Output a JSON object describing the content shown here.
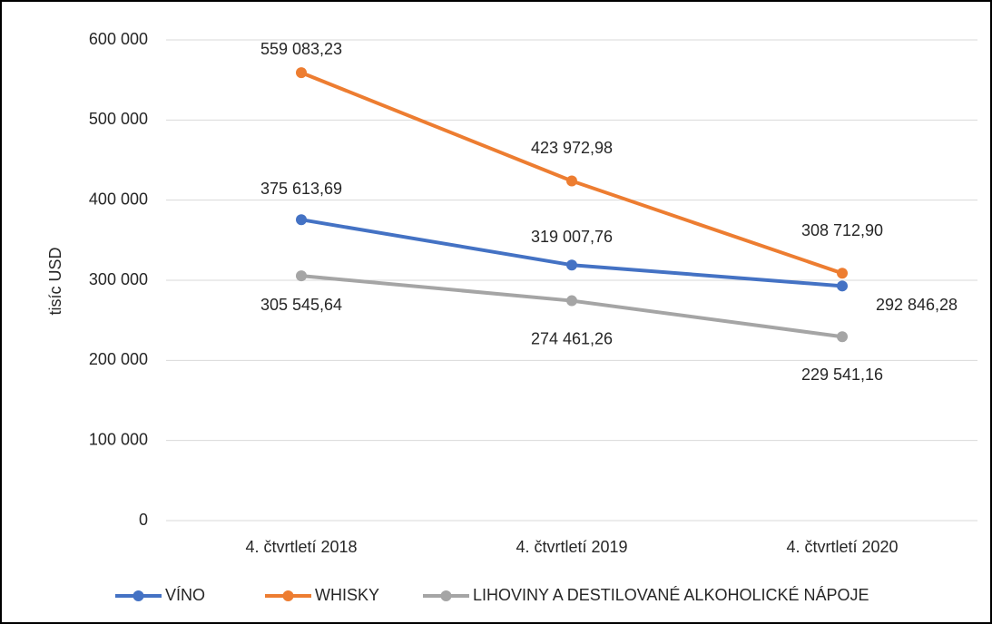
{
  "chart_data": {
    "type": "line",
    "ylabel": "tisíc USD",
    "categories": [
      "4. čtvrtletí 2018",
      "4. čtvrtletí 2019",
      "4. čtvrtletí 2020"
    ],
    "series": [
      {
        "name": "VÍNO",
        "color": "#4472c4",
        "values": [
          375613.69,
          319007.76,
          292846.28
        ],
        "value_labels": [
          "375 613,69",
          "319 007,76",
          "292 846,28"
        ]
      },
      {
        "name": "WHISKY",
        "color": "#ed7d31",
        "values": [
          559083.23,
          423972.98,
          308712.9
        ],
        "value_labels": [
          "559 083,23",
          "423 972,98",
          "308 712,90"
        ]
      },
      {
        "name": "LIHOVINY A DESTILOVANÉ ALKOHOLICKÉ NÁPOJE",
        "color": "#a5a5a5",
        "values": [
          305545.64,
          274461.26,
          229541.16
        ],
        "value_labels": [
          "305 545,64",
          "274 461,26",
          "229 541,16"
        ]
      }
    ],
    "ylim": [
      0,
      600000
    ],
    "yticks": [
      0,
      {
        "value": 100000,
        "label": "100 000"
      },
      {
        "value": 200000,
        "label": "200 000"
      },
      {
        "value": 300000,
        "label": "300 000"
      },
      {
        "value": 400000,
        "label": "400 000"
      },
      {
        "value": 500000,
        "label": "500 000"
      },
      {
        "value": 600000,
        "label": "600 000"
      }
    ],
    "grid": true,
    "legend": "bottom"
  }
}
